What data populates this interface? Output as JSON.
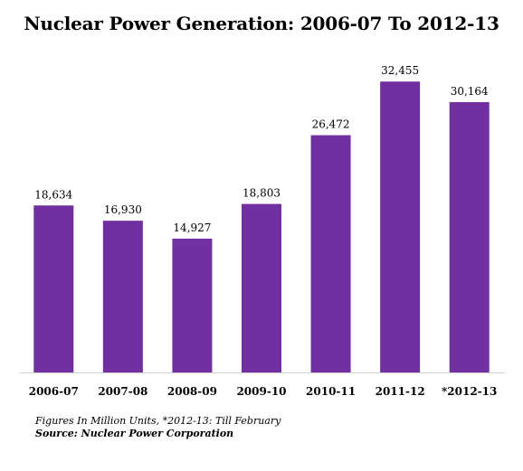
{
  "chart_data": {
    "type": "bar",
    "title": "Nuclear Power Generation: 2006-07 To 2012-13",
    "categories": [
      "2006-07",
      "2007-08",
      "2008-09",
      "2009-10",
      "2010-11",
      "2011-12",
      "*2012-13"
    ],
    "values": [
      18634,
      16930,
      14927,
      18803,
      26472,
      32455,
      30164
    ],
    "value_labels": [
      "18,634",
      "16,930",
      "14,927",
      "18,803",
      "26,472",
      "32,455",
      "30,164"
    ],
    "ylim": [
      0,
      35000
    ],
    "grid": false,
    "bar_color": "#7030a0"
  },
  "footnote": "Figures In Million Units, *2012-13: Till February",
  "source": "Source: Nuclear Power Corporation"
}
